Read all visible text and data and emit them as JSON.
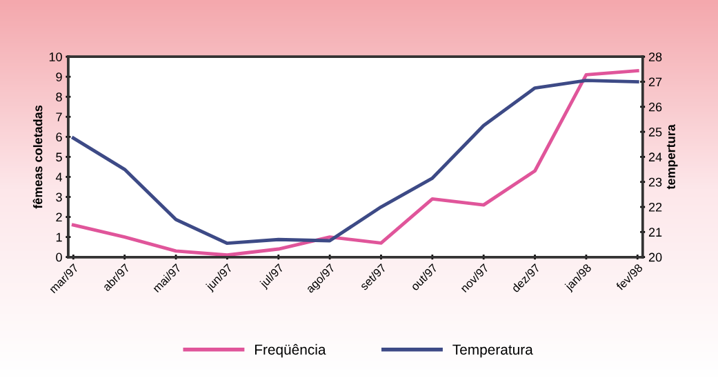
{
  "chart_data": {
    "type": "line",
    "categories": [
      "mar/97",
      "abr/97",
      "mai/97",
      "jun/97",
      "jul/97",
      "ago/97",
      "set/97",
      "out/97",
      "nov/97",
      "dez/97",
      "jan/98",
      "fev/98"
    ],
    "series": [
      {
        "name": "Freqüência",
        "color": "#e0559a",
        "values": [
          1.6,
          1.0,
          0.3,
          0.1,
          0.4,
          1.0,
          0.7,
          2.9,
          2.6,
          4.3,
          9.1,
          9.3
        ]
      },
      {
        "name": "Temperatura",
        "color": "#3d4a86",
        "axis": "y2",
        "values": [
          24.75,
          23.5,
          21.5,
          20.55,
          20.7,
          20.65,
          22.0,
          23.15,
          25.25,
          26.75,
          27.05,
          27.0
        ]
      }
    ],
    "ylabel": "fêmeas coletadas",
    "y2label": "tempertura",
    "ylim": [
      0,
      10
    ],
    "yticks": [
      0,
      1,
      2,
      3,
      4,
      5,
      6,
      7,
      8,
      9,
      10
    ],
    "y2lim": [
      20,
      28
    ],
    "y2ticks": [
      20,
      21,
      22,
      23,
      24,
      25,
      26,
      27,
      28
    ],
    "legend": "bottom",
    "grid": false,
    "marker": "none",
    "line_style": "solid"
  }
}
